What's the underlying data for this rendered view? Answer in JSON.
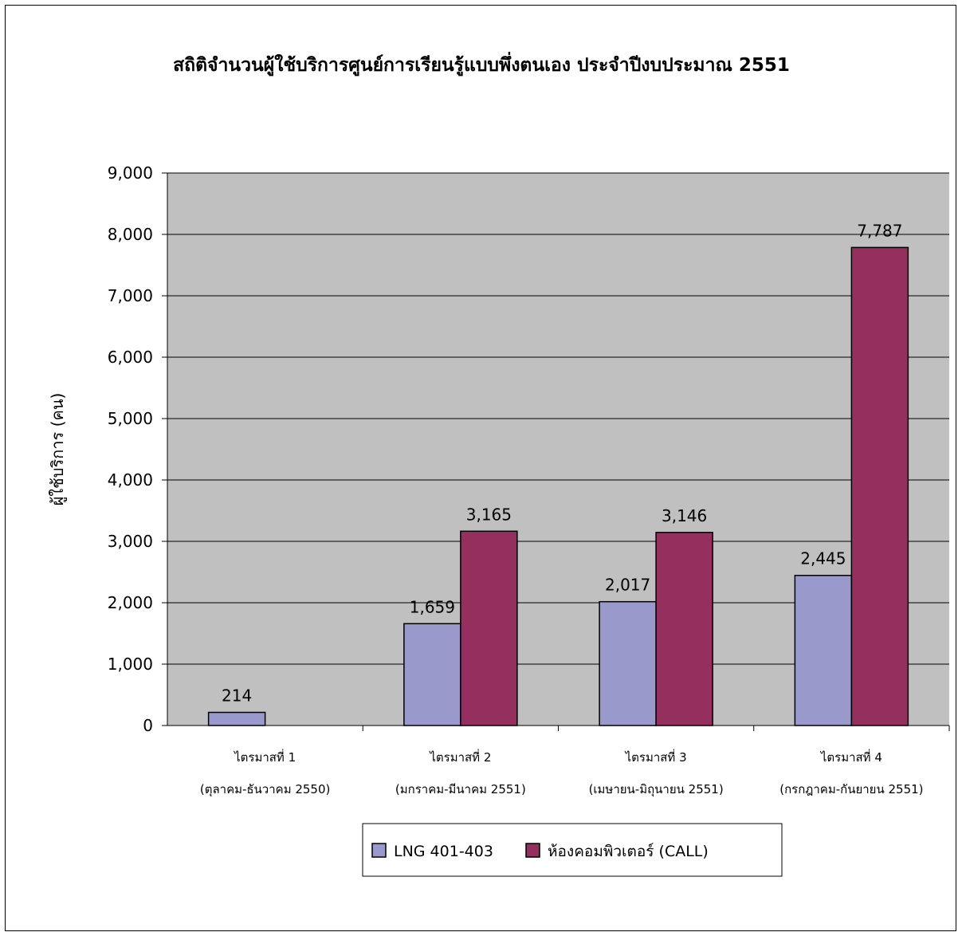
{
  "chart_data": {
    "type": "bar",
    "title": "สถิติจำนวนผู้ใช้บริการศูนย์การเรียนรู้แบบพึ่งตนเอง ประจำปีงบประมาณ 2551",
    "ylabel": "ผู้ใช้บริการ (คน)",
    "xlabel": "",
    "ylim": [
      0,
      9000
    ],
    "yticks": [
      "0",
      "1,000",
      "2,000",
      "3,000",
      "4,000",
      "5,000",
      "6,000",
      "7,000",
      "8,000",
      "9,000"
    ],
    "categories": [
      {
        "line1": "ไตรมาสที่ 1",
        "line2": "(ตุลาคม-ธันวาคม 2550)"
      },
      {
        "line1": "ไตรมาสที่ 2",
        "line2": "(มกราคม-มีนาคม 2551)"
      },
      {
        "line1": "ไตรมาสที่ 3",
        "line2": "(เมษายน-มิถุนายน 2551)"
      },
      {
        "line1": "ไตรมาสที่ 4",
        "line2": "(กรกฎาคม-กันยายน 2551)"
      }
    ],
    "series": [
      {
        "name": "LNG 401-403",
        "color": "#9999cc",
        "values": [
          214,
          1659,
          2017,
          2445
        ],
        "labels": [
          "214",
          "1,659",
          "2,017",
          "2,445"
        ]
      },
      {
        "name": "ห้องคอมพิวเตอร์ (CALL)",
        "color": "#952f5d",
        "values": [
          0,
          3165,
          3146,
          7787
        ],
        "labels": [
          "",
          "3,165",
          "3,146",
          "7,787"
        ]
      }
    ],
    "plot_background": "#c0c0c0",
    "grid": true,
    "legend": "bottom-center"
  }
}
